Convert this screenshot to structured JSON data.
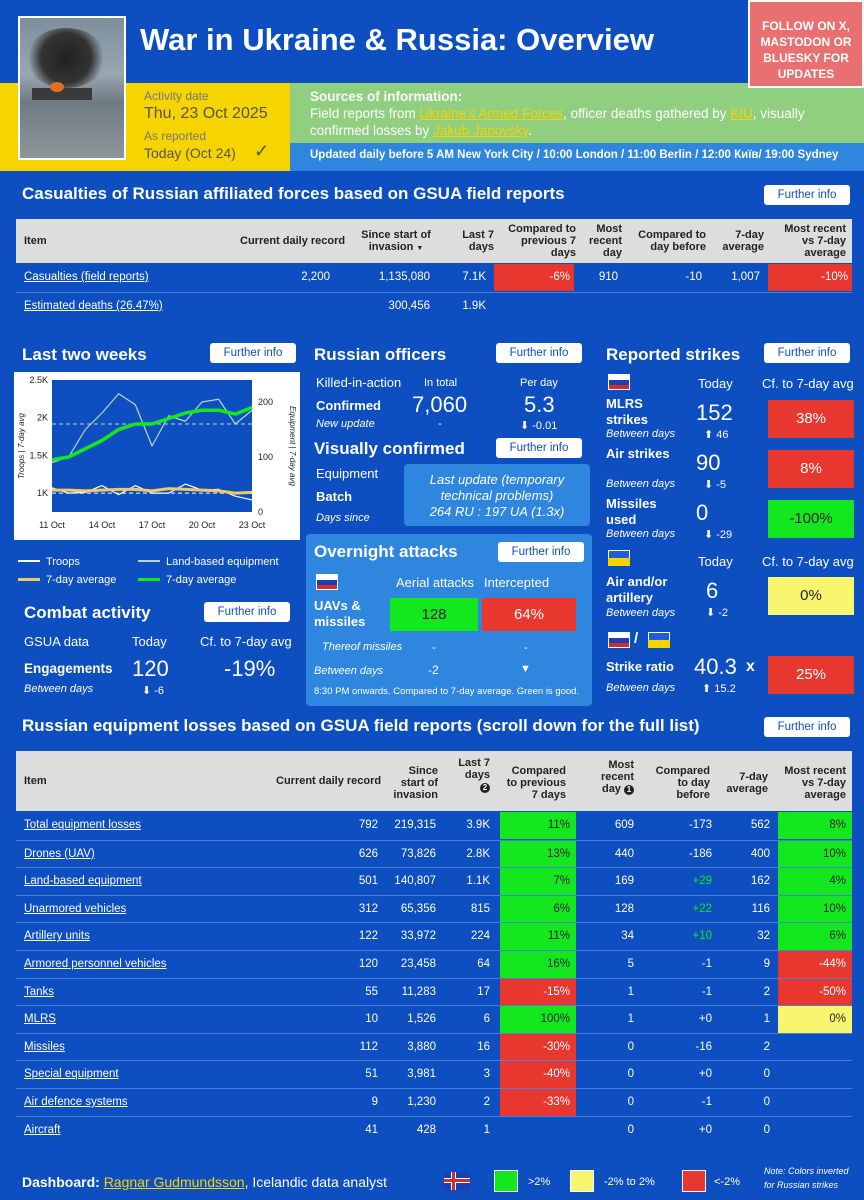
{
  "header": {
    "title": "War in Ukraine & Russia: Overview",
    "follow": "FOLLOW ON X, MASTODON OR BLUESKY FOR UPDATES",
    "activity_label": "Activity date",
    "activity_date": "Thu, 23 Oct 2025",
    "reported_label": "As reported",
    "reported_value": "Today (Oct 24)",
    "check": "✓",
    "sources_title": "Sources of information:",
    "sources_text1": "Field reports from ",
    "sources_link1": "Ukraine's Armed Forces",
    "sources_text2": ", officer deaths gathered by ",
    "sources_link2": "KIU",
    "sources_text3": ", visually confirmed losses by ",
    "sources_link3": "Jakub Janovsky",
    "sources_text4": ".",
    "updated": "Updated daily before 5 AM New York City / 10:00 London / 11:00 Berlin / 12:00 Київ/ 19:00 Sydney"
  },
  "further": "Further info",
  "casualties": {
    "title": "Casualties of Russian affiliated forces based on GSUA field reports",
    "headers": [
      "Item",
      "Current daily record",
      "Since start of invasion",
      "Last 7 days",
      "Compared to previous 7 days",
      "Most recent day",
      "Compared to day before",
      "7-day average",
      "Most recent vs 7-day average"
    ],
    "sort_icon": "▼",
    "rows": [
      [
        "Casualties (field reports)",
        "2,200",
        "1,135,080",
        "7.1K",
        "-6%",
        "910",
        "-10",
        "1,007",
        "-10%"
      ],
      [
        "Estimated deaths (26.47%)",
        "",
        "300,456",
        "1.9K",
        "",
        "",
        "",
        "",
        ""
      ]
    ]
  },
  "two_weeks": {
    "title": "Last two weeks",
    "yl": "Troops | 7-day avg",
    "yr": "Equipment | 7-day avg",
    "yticks": [
      "2.5K",
      "2K",
      "1.5K",
      "1K"
    ],
    "rticks": [
      "200",
      "100",
      "0"
    ],
    "xticks": [
      "11 Oct",
      "14 Oct",
      "17 Oct",
      "20 Oct",
      "23 Oct"
    ],
    "legend": [
      "Troops",
      "Land-based equipment",
      "7-day average",
      "7-day average"
    ]
  },
  "chart_data": {
    "type": "line",
    "x": [
      "11 Oct",
      "12 Oct",
      "13 Oct",
      "14 Oct",
      "15 Oct",
      "16 Oct",
      "17 Oct",
      "18 Oct",
      "19 Oct",
      "20 Oct",
      "21 Oct",
      "22 Oct",
      "23 Oct"
    ],
    "series": [
      {
        "name": "Troops",
        "axis": "left",
        "values": [
          1070,
          1000,
          1010,
          1100,
          980,
          1100,
          1000,
          1000,
          1120,
          1040,
          1050,
          960,
          910
        ]
      },
      {
        "name": "Land-based equipment",
        "axis": "right",
        "values": [
          90,
          100,
          150,
          180,
          215,
          195,
          120,
          175,
          165,
          200,
          205,
          160,
          185
        ]
      },
      {
        "name": "7-day average",
        "axis": "left",
        "values": [
          1040,
          1040,
          1030,
          1040,
          1050,
          1050,
          1030,
          1060,
          1050,
          1040,
          1030,
          1000,
          1010
        ]
      },
      {
        "name": "7-day average",
        "axis": "right",
        "values": [
          95,
          100,
          115,
          130,
          150,
          160,
          160,
          170,
          180,
          185,
          185,
          178,
          190
        ]
      }
    ],
    "ylim": [
      0,
      2500
    ],
    "y2lim": [
      0,
      240
    ],
    "ref_left": 1000,
    "ref_right": 160
  },
  "combat": {
    "title": "Combat activity",
    "col1": "GSUA data",
    "col2": "Today",
    "col3": "Cf. to 7-day avg",
    "label": "Engagements",
    "value": "120",
    "cf": "-19%",
    "sub": "Between days",
    "delta": "⬇ -6"
  },
  "officers": {
    "title": "Russian officers",
    "kia": "Killed-in-action",
    "in_total": "In total",
    "per_day": "Per day",
    "confirmed": "Confirmed",
    "total": "7,060",
    "perday": "5.3",
    "new_update": "New update",
    "dash": "-",
    "delta": "⬇ -0.01"
  },
  "visual": {
    "title": "Visually confirmed",
    "equipment": "Equipment",
    "batch": "Batch",
    "days_since": "Days since",
    "notice": "Last update (temporary technical problems)",
    "ratio": "264 RU : 197 UA (1.3x)"
  },
  "overnight": {
    "title": "Overnight attacks",
    "aerial": "Aerial attacks",
    "intercepted": "Intercepted",
    "label": "UAVs & missiles",
    "aerial_val": "128",
    "inter_val": "64%",
    "thereof": "Thereof missiles",
    "dash1": "-",
    "dash2": "-",
    "between": "Between days",
    "bval": "-2",
    "arrow": "▼",
    "note": "8:30 PM onwards. Compared to 7-day average. Green is good."
  },
  "strikes": {
    "title": "Reported strikes",
    "today": "Today",
    "cf": "Cf. to 7-day avg",
    "rows": [
      {
        "label": "MLRS strikes",
        "value": "152",
        "delta": "⬆ 46",
        "cf": "38%",
        "sub": "Between days"
      },
      {
        "label": "Air strikes",
        "value": "90",
        "delta": "⬇ -5",
        "cf": "8%",
        "sub": "Between days"
      },
      {
        "label": "Missiles used",
        "value": "0",
        "delta": "⬇ -29",
        "cf": "-100%",
        "sub": "Between days"
      }
    ],
    "ua_today": "Today",
    "ua_cf": "Cf. to 7-day avg",
    "ua_label": "Air and/or artillery",
    "ua_value": "6",
    "ua_delta": "⬇ -2",
    "ua_cf_val": "0%",
    "ua_sub": "Between days",
    "ratio_label": "Strike ratio",
    "ratio_value": "40.3",
    "ratio_x": "x",
    "ratio_delta": "⬆ 15.2",
    "ratio_cf": "25%",
    "ratio_sub": "Between days",
    "slash": "/"
  },
  "equipment": {
    "title": "Russian equipment losses based on GSUA field reports (scroll down for the full list)",
    "headers": [
      "Item",
      "Current daily record",
      "Since start of invasion",
      "Last 7 days",
      "Compared to previous 7 days",
      "Most recent day",
      "Compared to day before",
      "7-day average",
      "Most recent vs 7-day average"
    ],
    "badge2": "2",
    "badge1": "1",
    "rows": [
      [
        "Total equipment losses",
        "792",
        "219,315",
        "3.9K",
        "11%",
        "609",
        "-173",
        "562",
        "8%"
      ],
      [
        "Drones (UAV)",
        "626",
        "73,826",
        "2.8K",
        "13%",
        "440",
        "-186",
        "400",
        "10%"
      ],
      [
        "Land-based equipment",
        "501",
        "140,807",
        "1.1K",
        "7%",
        "169",
        "+29",
        "162",
        "4%"
      ],
      [
        "Unarmored vehicles",
        "312",
        "65,356",
        "815",
        "6%",
        "128",
        "+22",
        "116",
        "10%"
      ],
      [
        "Artillery units",
        "122",
        "33,972",
        "224",
        "11%",
        "34",
        "+10",
        "32",
        "6%"
      ],
      [
        "Armored personnel vehicles",
        "120",
        "23,458",
        "64",
        "16%",
        "5",
        "-1",
        "9",
        "-44%"
      ],
      [
        "Tanks",
        "55",
        "11,283",
        "17",
        "-15%",
        "1",
        "-1",
        "2",
        "-50%"
      ],
      [
        "MLRS",
        "10",
        "1,526",
        "6",
        "100%",
        "1",
        "+0",
        "1",
        "0%"
      ],
      [
        "Missiles",
        "112",
        "3,880",
        "16",
        "-30%",
        "0",
        "-16",
        "2",
        ""
      ],
      [
        "Special equipment",
        "51",
        "3,981",
        "3",
        "-40%",
        "0",
        "+0",
        "0",
        ""
      ],
      [
        "Air defence systems",
        "9",
        "1,230",
        "2",
        "-33%",
        "0",
        "-1",
        "0",
        ""
      ],
      [
        "Aircraft",
        "41",
        "428",
        "1",
        "",
        "0",
        "+0",
        "0",
        ""
      ]
    ],
    "cf_colors": [
      "grn",
      "grn",
      "grn",
      "grn",
      "grn",
      "grn",
      "red",
      "grn",
      "red",
      "red",
      "red",
      ""
    ],
    "mr_colors": [
      "grn",
      "grn",
      "grn",
      "grn",
      "grn",
      "red",
      "red",
      "yel",
      "",
      "",
      "",
      ""
    ],
    "db_green": [
      false,
      false,
      true,
      true,
      true,
      false,
      false,
      false,
      false,
      false,
      false,
      false
    ]
  },
  "footer": {
    "label": "Dashboard: ",
    "author": "Ragnar Gudmundsson",
    "desc": ", Icelandic data analyst",
    "l1": ">2%",
    "l2": "-2% to 2%",
    "l3": "<-2%",
    "note": "Note: Colors inverted for Russian strikes"
  }
}
